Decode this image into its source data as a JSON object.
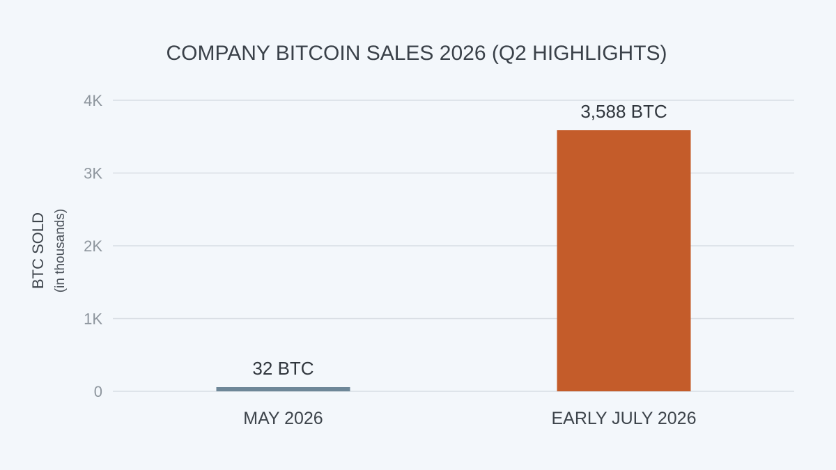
{
  "chart_data": {
    "type": "bar",
    "title": "COMPANY BITCOIN SALES 2026 (Q2 HIGHLIGHTS)",
    "categories": [
      "MAY 2026",
      "EARLY JULY 2026"
    ],
    "values": [
      32,
      3588
    ],
    "data_labels": [
      "32 BTC",
      "3,588 BTC"
    ],
    "colors": [
      "#6e8798",
      "#c45c2a"
    ],
    "ylabel": "BTC SOLD",
    "ylabel_sub": "(in thousands)",
    "ylim": [
      0,
      4000
    ],
    "yticks": [
      0,
      1000,
      2000,
      3000,
      4000
    ],
    "ytick_labels": [
      "0",
      "1K",
      "2K",
      "3K",
      "4K"
    ],
    "grid": true,
    "legend": "none"
  }
}
